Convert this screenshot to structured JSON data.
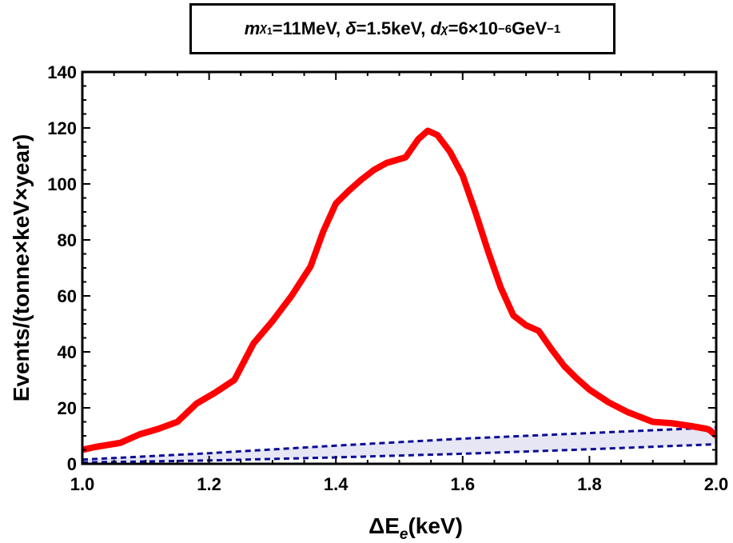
{
  "chart_data": {
    "type": "line",
    "title": "m_χ1=11MeV, δ=1.5keV, d_χ=6×10^-6GeV^-1",
    "title_parts": {
      "m_symbol": "m",
      "m_sub": "χ",
      "m_subsub": "1",
      "m_value": "=11MeV, ",
      "delta_symbol": "δ",
      "delta_value": "=1.5keV, ",
      "d_symbol": "d",
      "d_sub": "χ",
      "d_value_pre": "=6×10",
      "d_exp": "−6",
      "d_unit": "GeV",
      "d_unit_exp": "−1"
    },
    "xlabel_main": "ΔE",
    "xlabel_sub": "e",
    "xlabel_unit": "(keV)",
    "ylabel": "Events/(tonne×keV×year)",
    "xlim": [
      1.0,
      2.0
    ],
    "ylim": [
      0,
      140
    ],
    "xticks": [
      1.0,
      1.2,
      1.4,
      1.6,
      1.8,
      2.0
    ],
    "xtick_labels": [
      "1.0",
      "1.2",
      "1.4",
      "1.6",
      "1.8",
      "2.0"
    ],
    "yticks": [
      0,
      20,
      40,
      60,
      80,
      100,
      120,
      140
    ],
    "ytick_labels": [
      "0",
      "20",
      "40",
      "60",
      "80",
      "100",
      "120",
      "140"
    ],
    "grid": false,
    "series": [
      {
        "color": "#ff0000",
        "style": "solid",
        "x": [
          1.0,
          1.02,
          1.06,
          1.09,
          1.12,
          1.15,
          1.18,
          1.21,
          1.24,
          1.27,
          1.3,
          1.33,
          1.36,
          1.38,
          1.4,
          1.42,
          1.44,
          1.46,
          1.48,
          1.51,
          1.53,
          1.545,
          1.56,
          1.58,
          1.6,
          1.62,
          1.64,
          1.66,
          1.68,
          1.7,
          1.72,
          1.74,
          1.76,
          1.78,
          1.8,
          1.83,
          1.86,
          1.9,
          1.93,
          1.96,
          1.985,
          1.99,
          2.0
        ],
        "y": [
          5,
          6,
          7.5,
          10.5,
          12.5,
          15,
          21.5,
          25.5,
          30,
          43,
          51,
          60,
          70.5,
          83,
          93,
          97.5,
          101.5,
          105,
          107.5,
          109.5,
          116,
          119,
          117.5,
          111.5,
          103,
          90,
          76,
          63,
          53,
          49.5,
          47.5,
          41,
          35,
          30.5,
          26.5,
          22,
          18.5,
          15,
          14.5,
          13.5,
          12.5,
          12,
          10
        ]
      }
    ],
    "band": {
      "fill": "#e6e6f5",
      "line_color": "#0a0a96",
      "line_style": "dashed",
      "x": [
        1.0,
        1.2,
        1.4,
        1.6,
        1.8,
        2.0
      ],
      "upper": [
        1.5,
        3.8,
        6.5,
        9.0,
        11.0,
        13.0
      ],
      "lower": [
        0.5,
        1.2,
        2.3,
        3.6,
        5.2,
        7.0
      ]
    }
  }
}
